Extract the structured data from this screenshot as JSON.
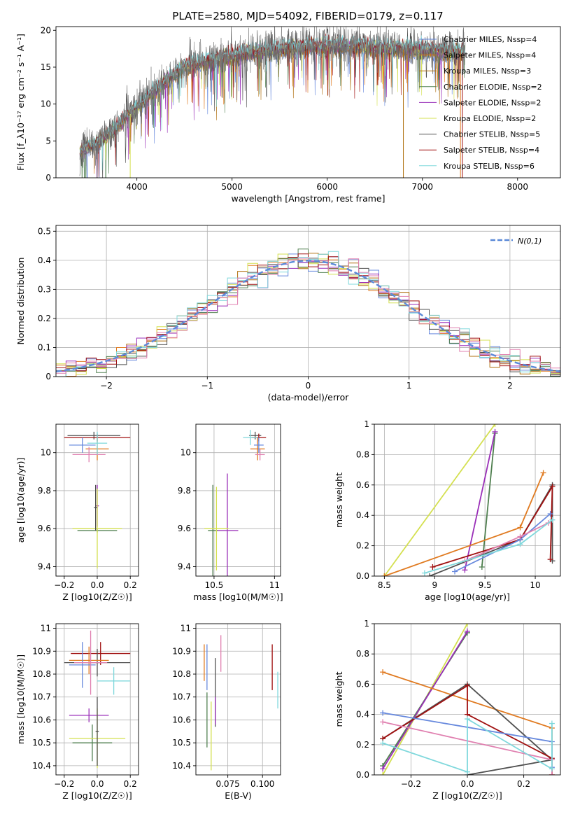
{
  "colors": {
    "Chabrier MILES": "#6688dd",
    "Salpeter MILES": "#e07a20",
    "Kroupa MILES": "#b07010",
    "Chabrier ELODIE": "#4f7f4f",
    "Salpeter ELODIE": "#9a2fb8",
    "Kroupa ELODIE": "#d4e050",
    "Chabrier STELIB": "#505050",
    "Salpeter STELIB": "#a01010",
    "Kroupa STELIB": "#7fd8dc",
    "pink": "#e080b0",
    "normal": "#5b8ad8"
  },
  "chart_data": [
    {
      "id": "spectrum",
      "type": "line",
      "title": "PLATE=2580, MJD=54092, FIBERID=0179, z=0.117",
      "xlabel": "wavelength [Angstrom, rest frame]",
      "ylabel": "Flux [f_λ10⁻¹⁷ erg cm⁻² s⁻¹ A⁻¹]",
      "xlim": [
        3150,
        8450
      ],
      "ylim": [
        0,
        20.5
      ],
      "xticks": [
        4000,
        5000,
        6000,
        7000,
        8000
      ],
      "yticks": [
        0,
        5,
        10,
        15,
        20
      ],
      "legend_location": "upper right",
      "legend": [
        {
          "label": "Chabrier MILES, N_SSP=4",
          "color": "#6688dd"
        },
        {
          "label": "Salpeter MILES, N_SSP=4",
          "color": "#e07a20"
        },
        {
          "label": "Kroupa MILES, N_SSP=3",
          "color": "#b07010"
        },
        {
          "label": "Chabrier ELODIE, N_SSP=2",
          "color": "#4f7f4f"
        },
        {
          "label": "Salpeter ELODIE, N_SSP=2",
          "color": "#9a2fb8"
        },
        {
          "label": "Kroupa ELODIE, N_SSP=2",
          "color": "#d4e050"
        },
        {
          "label": "Chabrier STELIB, N_SSP=5",
          "color": "#505050"
        },
        {
          "label": "Salpeter STELIB, N_SSP=4",
          "color": "#a01010"
        },
        {
          "label": "Kroupa STELIB, N_SSP=6",
          "color": "#7fd8dc"
        }
      ],
      "continuum": {
        "x": [
          3400,
          3600,
          3800,
          4000,
          4200,
          4500,
          4800,
          5000,
          5200,
          5500,
          5800,
          6000,
          6300,
          6600,
          7000,
          7300
        ],
        "y": [
          3.5,
          5.0,
          7.0,
          9.5,
          12.0,
          15.0,
          16.0,
          16.3,
          17.0,
          17.4,
          17.8,
          17.8,
          17.8,
          17.5,
          17.3,
          17.0
        ]
      }
    },
    {
      "id": "residuals",
      "type": "line",
      "xlabel": "(data-model)/error",
      "ylabel": "Normed distribution",
      "xlim": [
        -2.5,
        2.5
      ],
      "ylim": [
        0,
        0.52
      ],
      "xticks": [
        -2,
        -1,
        0,
        1,
        2
      ],
      "yticks": [
        0.0,
        0.1,
        0.2,
        0.3,
        0.4,
        0.5
      ],
      "legend_location": "upper right",
      "legend": [
        {
          "label": "N(0,1)",
          "style": "dashed",
          "color": "#5b8ad8"
        }
      ],
      "normal_curve": {
        "mu": 0,
        "sigma": 1
      }
    },
    {
      "id": "age-vs-Z",
      "type": "scatter",
      "xlabel": "Z [log10(Z/Z☉)]",
      "ylabel": "age  [log10(age/yr)]",
      "xlim": [
        -0.25,
        0.25
      ],
      "ylim": [
        9.35,
        10.15
      ],
      "xticks": [
        -0.2,
        0.0,
        0.2
      ],
      "yticks": [
        9.4,
        9.6,
        9.8,
        10.0
      ],
      "points": [
        {
          "x": -0.02,
          "y": 10.09,
          "xerr": 0.16,
          "yerr": 0.02,
          "color": "#505050"
        },
        {
          "x": 0.0,
          "y": 10.08,
          "xerr": 0.2,
          "yerr": 0.02,
          "color": "#a01010"
        },
        {
          "x": 0.0,
          "y": 10.02,
          "xerr": 0.07,
          "yerr": 0.06,
          "color": "#e07a20"
        },
        {
          "x": -0.09,
          "y": 10.04,
          "xerr": 0.08,
          "yerr": 0.04,
          "color": "#6688dd"
        },
        {
          "x": -0.05,
          "y": 9.99,
          "xerr": 0.1,
          "yerr": 0.04,
          "color": "#e080b0"
        },
        {
          "x": 0.0,
          "y": 10.05,
          "xerr": 0.06,
          "yerr": 0.06,
          "color": "#7fd8dc"
        },
        {
          "x": 0.0,
          "y": 9.72,
          "xerr": 0.01,
          "yerr": 0.11,
          "color": "#9a2fb8"
        },
        {
          "x": 0.0,
          "y": 9.59,
          "xerr": 0.12,
          "yerr": 0.01,
          "color": "#4f7f4f"
        },
        {
          "x": 0.0,
          "y": 9.6,
          "xerr": 0.15,
          "yerr": 0.21,
          "color": "#d4e050"
        },
        {
          "x": -0.01,
          "y": 9.71,
          "xerr": 0.01,
          "yerr": 0.12,
          "color": "#505050"
        }
      ]
    },
    {
      "id": "age-vs-mass",
      "type": "scatter",
      "xlabel": "mass [log10(M/M☉)]",
      "ylabel": "",
      "xlim": [
        10.35,
        11.05
      ],
      "ylim": [
        9.35,
        10.15
      ],
      "xticks": [
        10.5,
        11.0
      ],
      "yticks": [
        9.4,
        9.6,
        9.8,
        10.0
      ],
      "points": [
        {
          "x": 10.84,
          "y": 10.09,
          "xerr": 0.05,
          "yerr": 0.02,
          "color": "#505050"
        },
        {
          "x": 10.87,
          "y": 10.08,
          "xerr": 0.06,
          "yerr": 0.02,
          "color": "#a01010"
        },
        {
          "x": 10.86,
          "y": 10.02,
          "xerr": 0.06,
          "yerr": 0.06,
          "color": "#e07a20"
        },
        {
          "x": 10.87,
          "y": 10.04,
          "xerr": 0.04,
          "yerr": 0.04,
          "color": "#6688dd"
        },
        {
          "x": 10.88,
          "y": 9.99,
          "xerr": 0.04,
          "yerr": 0.03,
          "color": "#e080b0"
        },
        {
          "x": 10.8,
          "y": 10.08,
          "xerr": 0.06,
          "yerr": 0.04,
          "color": "#7fd8dc"
        },
        {
          "x": 10.61,
          "y": 9.59,
          "xerr": 0.09,
          "yerr": 0.3,
          "color": "#9a2fb8"
        },
        {
          "x": 10.49,
          "y": 9.59,
          "xerr": 0.04,
          "yerr": 0.24,
          "color": "#4f7f4f"
        },
        {
          "x": 10.52,
          "y": 9.6,
          "xerr": 0.1,
          "yerr": 0.22,
          "color": "#d4e050"
        }
      ]
    },
    {
      "id": "weight-vs-age",
      "type": "line",
      "xlabel": "age  [log10(age/yr)]",
      "ylabel": "mass weight",
      "xlim": [
        8.4,
        10.25
      ],
      "ylim": [
        0,
        1.0
      ],
      "xticks": [
        8.5,
        9.0,
        9.5,
        10.0
      ],
      "yticks": [
        0.0,
        0.2,
        0.4,
        0.6,
        0.8,
        1.0
      ],
      "series": [
        {
          "color": "#d4e050",
          "x": [
            8.5,
            9.6
          ],
          "y": [
            0.0,
            1.0
          ]
        },
        {
          "color": "#4f7f4f",
          "x": [
            9.47,
            9.6
          ],
          "y": [
            0.06,
            0.94
          ]
        },
        {
          "color": "#9a2fb8",
          "x": [
            9.3,
            9.6
          ],
          "y": [
            0.04,
            0.95
          ]
        },
        {
          "color": "#e07a20",
          "x": [
            8.5,
            9.85,
            10.08
          ],
          "y": [
            0.0,
            0.32,
            0.68
          ]
        },
        {
          "color": "#505050",
          "x": [
            8.95,
            9.85,
            10.17,
            10.17
          ],
          "y": [
            0.0,
            0.24,
            0.6,
            0.1
          ]
        },
        {
          "color": "#a01010",
          "x": [
            8.98,
            9.85,
            10.17,
            10.15
          ],
          "y": [
            0.06,
            0.24,
            0.59,
            0.11
          ]
        },
        {
          "color": "#6688dd",
          "x": [
            9.2,
            9.85,
            10.15
          ],
          "y": [
            0.03,
            0.24,
            0.41
          ]
        },
        {
          "color": "#e080b0",
          "x": [
            9.3,
            9.85,
            10.13
          ],
          "y": [
            0.1,
            0.26,
            0.35
          ]
        },
        {
          "color": "#7fd8dc",
          "x": [
            8.9,
            9.85,
            10.17
          ],
          "y": [
            0.02,
            0.21,
            0.37
          ]
        }
      ]
    },
    {
      "id": "mass-vs-Z",
      "type": "scatter",
      "xlabel": "Z [log10(Z/Z☉)]",
      "ylabel": "mass [log10(M/M☉)]",
      "xlim": [
        -0.25,
        0.25
      ],
      "ylim": [
        10.36,
        11.02
      ],
      "xticks": [
        -0.2,
        0.0,
        0.2
      ],
      "yticks": [
        10.4,
        10.5,
        10.6,
        10.7,
        10.8,
        10.9,
        11.0
      ],
      "points": [
        {
          "x": 0.02,
          "y": 10.89,
          "xerr": 0.18,
          "yerr": 0.05,
          "color": "#a01010"
        },
        {
          "x": 0.0,
          "y": 10.85,
          "xerr": 0.2,
          "yerr": 0.06,
          "color": "#505050"
        },
        {
          "x": -0.05,
          "y": 10.86,
          "xerr": 0.12,
          "yerr": 0.06,
          "color": "#e07a20"
        },
        {
          "x": -0.09,
          "y": 10.84,
          "xerr": 0.08,
          "yerr": 0.1,
          "color": "#6688dd"
        },
        {
          "x": -0.04,
          "y": 10.85,
          "xerr": 0.1,
          "yerr": 0.14,
          "color": "#e080b0"
        },
        {
          "x": 0.1,
          "y": 10.77,
          "xerr": 0.1,
          "yerr": 0.06,
          "color": "#7fd8dc"
        },
        {
          "x": -0.05,
          "y": 10.62,
          "xerr": 0.12,
          "yerr": 0.03,
          "color": "#9a2fb8"
        },
        {
          "x": -0.03,
          "y": 10.5,
          "xerr": 0.12,
          "yerr": 0.08,
          "color": "#4f7f4f"
        },
        {
          "x": 0.0,
          "y": 10.52,
          "xerr": 0.17,
          "yerr": 0.13,
          "color": "#d4e050"
        },
        {
          "x": 0.0,
          "y": 10.55,
          "xerr": 0.01,
          "yerr": 0.15,
          "color": "#505050"
        }
      ]
    },
    {
      "id": "mass-vs-ebv",
      "type": "scatter",
      "xlabel": "E(B-V)",
      "ylabel": "",
      "xlim": [
        0.052,
        0.113
      ],
      "ylim": [
        10.36,
        11.02
      ],
      "xticks": [
        0.075,
        0.1
      ],
      "xticklabels": [
        "0.075",
        "0.100"
      ],
      "yticks": [
        10.4,
        10.5,
        10.6,
        10.7,
        10.8,
        10.9,
        11.0
      ],
      "points": [
        {
          "x": 0.058,
          "y": 10.85,
          "xerr": 0.0,
          "yerr": 0.08,
          "color": "#e07a20"
        },
        {
          "x": 0.06,
          "y": 10.83,
          "xerr": 0.0,
          "yerr": 0.1,
          "color": "#6688dd"
        },
        {
          "x": 0.06,
          "y": 10.6,
          "xerr": 0.0,
          "yerr": 0.12,
          "color": "#4f7f4f"
        },
        {
          "x": 0.063,
          "y": 10.53,
          "xerr": 0.0,
          "yerr": 0.15,
          "color": "#d4e050"
        },
        {
          "x": 0.066,
          "y": 10.72,
          "xerr": 0.0,
          "yerr": 0.15,
          "color": "#505050"
        },
        {
          "x": 0.066,
          "y": 10.64,
          "xerr": 0.0,
          "yerr": 0.06,
          "color": "#9a2fb8"
        },
        {
          "x": 0.07,
          "y": 10.89,
          "xerr": 0.0,
          "yerr": 0.08,
          "color": "#e080b0"
        },
        {
          "x": 0.107,
          "y": 10.83,
          "xerr": 0.0,
          "yerr": 0.1,
          "color": "#a01010"
        },
        {
          "x": 0.111,
          "y": 10.73,
          "xerr": 0.0,
          "yerr": 0.08,
          "color": "#7fd8dc"
        }
      ]
    },
    {
      "id": "weight-vs-Z",
      "type": "line",
      "xlabel": "Z [log10(Z/Z☉)]",
      "ylabel": "mass weight",
      "xlim": [
        -0.33,
        0.33
      ],
      "ylim": [
        0,
        1.0
      ],
      "xticks": [
        -0.2,
        0.0,
        0.2
      ],
      "yticks": [
        0.0,
        0.2,
        0.4,
        0.6,
        0.8,
        1.0
      ],
      "series": [
        {
          "color": "#d4e050",
          "x": [
            -0.3,
            0.0
          ],
          "y": [
            0.0,
            1.0
          ]
        },
        {
          "color": "#4f7f4f",
          "x": [
            -0.3,
            0.0
          ],
          "y": [
            0.06,
            0.94
          ]
        },
        {
          "color": "#9a2fb8",
          "x": [
            -0.3,
            0.0
          ],
          "y": [
            0.04,
            0.95
          ]
        },
        {
          "color": "#e07a20",
          "x": [
            -0.3,
            0.3,
            0.3
          ],
          "y": [
            0.68,
            0.31,
            0.0
          ]
        },
        {
          "color": "#505050",
          "x": [
            -0.3,
            0.0,
            0.3,
            0.0
          ],
          "y": [
            0.24,
            0.6,
            0.1,
            0.0
          ]
        },
        {
          "color": "#a01010",
          "x": [
            -0.3,
            0.0,
            0.0,
            0.3,
            0.3
          ],
          "y": [
            0.24,
            0.59,
            0.4,
            0.11,
            0.0
          ]
        },
        {
          "color": "#6688dd",
          "x": [
            -0.3,
            0.3,
            0.3
          ],
          "y": [
            0.41,
            0.22,
            0.05
          ]
        },
        {
          "color": "#e080b0",
          "x": [
            -0.3,
            0.3,
            0.3
          ],
          "y": [
            0.35,
            0.1,
            0.0
          ]
        },
        {
          "color": "#7fd8dc",
          "x": [
            -0.3,
            0.0,
            0.0,
            0.3,
            0.3
          ],
          "y": [
            0.21,
            0.02,
            0.37,
            0.04,
            0.34
          ]
        }
      ]
    }
  ]
}
